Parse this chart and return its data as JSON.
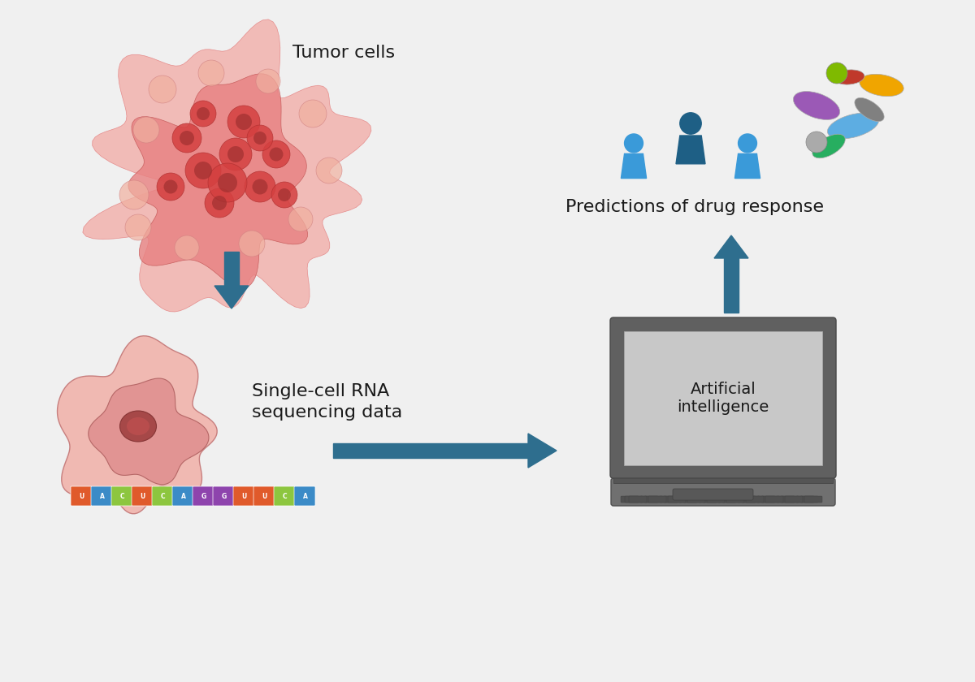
{
  "background_color": "#f0f0f0",
  "arrow_color": "#2e6e8e",
  "text_color": "#1a1a1a",
  "tumor_label": "Tumor cells",
  "seq_label": "Single-cell RNA\nsequencing data",
  "ai_label": "Artificial\nintelligence",
  "drug_label": "Predictions of drug response",
  "dna_sequence": [
    "U",
    "A",
    "C",
    "U",
    "C",
    "A",
    "G",
    "G",
    "U",
    "U",
    "C",
    "A"
  ],
  "dna_colors": [
    "#e05a2b",
    "#3b8bc7",
    "#8dc63f",
    "#e05a2b",
    "#8dc63f",
    "#3b8bc7",
    "#8e44ad",
    "#8e44ad",
    "#e05a2b",
    "#e05a2b",
    "#8dc63f",
    "#3b8bc7"
  ],
  "label_fontsize": 16,
  "ai_screen_color": "#d0d0d0",
  "laptop_body_color": "#606060",
  "laptop_keyboard_color": "#505050"
}
